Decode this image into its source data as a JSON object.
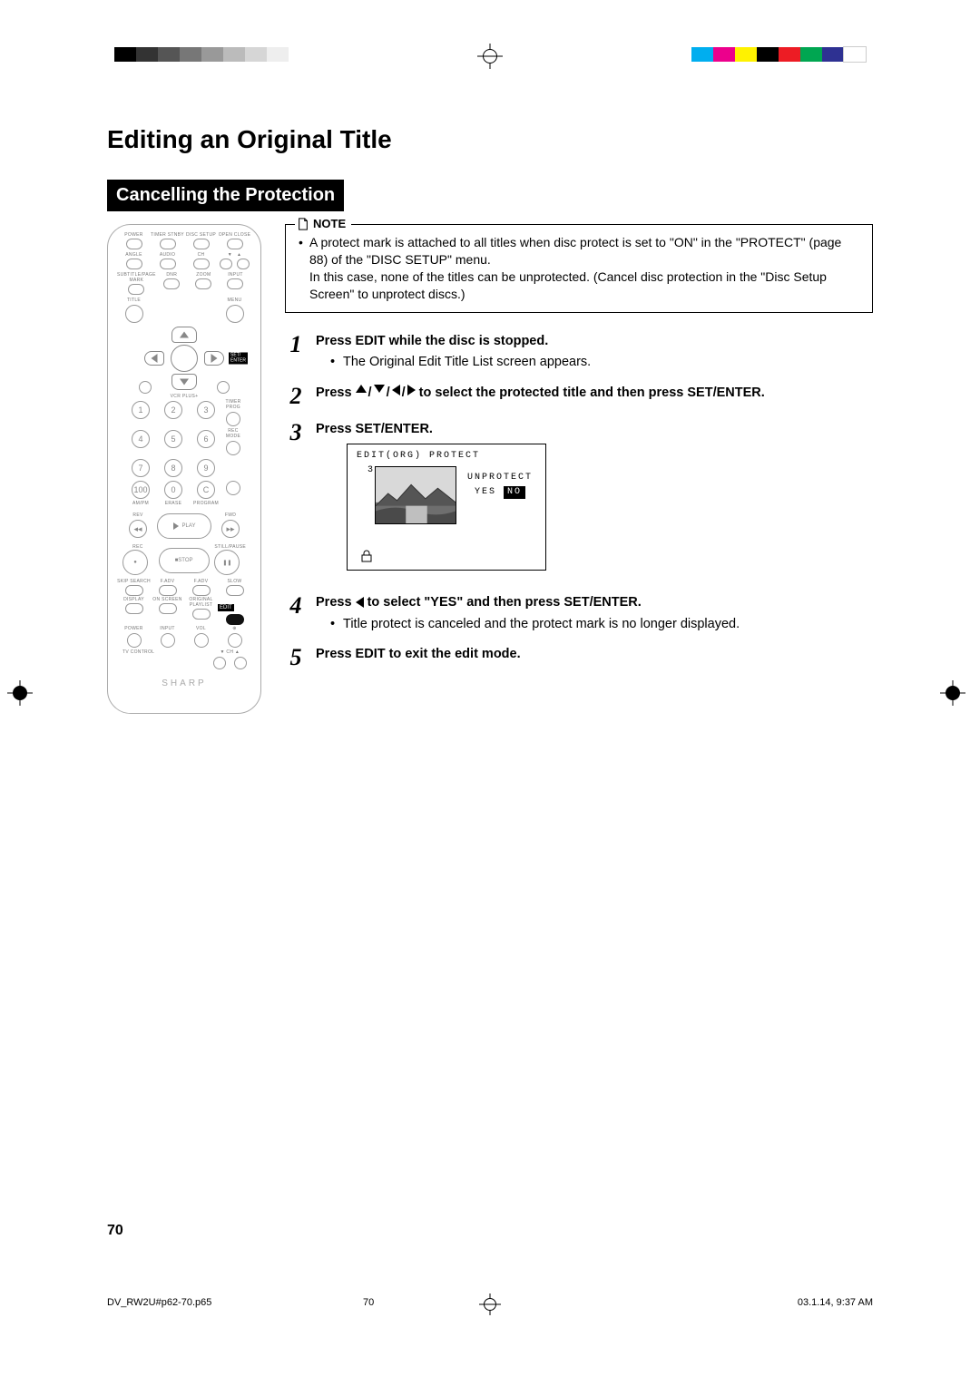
{
  "registration": {
    "left_shades": [
      "#000000",
      "#333333",
      "#555555",
      "#777777",
      "#999999",
      "#bbbbbb",
      "#d6d6d6",
      "#eeeeee"
    ],
    "right_colors": [
      "#00aeef",
      "#ec008c",
      "#fff200",
      "#000000",
      "#ed1c24",
      "#00a651",
      "#2e3192",
      "#ffffff"
    ]
  },
  "page": {
    "title": "Editing an Original Title",
    "section": "Cancelling the Protection",
    "page_number": "70"
  },
  "note": {
    "label": "NOTE",
    "text": "A protect mark is attached to all titles when disc protect is set to \"ON\" in the \"PROTECT\" (page 88) of the \"DISC SETUP\" menu.\nIn this case, none of the titles can be unprotected. (Cancel disc protection in the \"Disc Setup Screen\" to unprotect discs.)"
  },
  "steps": {
    "s1_a": "Press ",
    "s1_b": "EDIT",
    "s1_c": " while the disc is stopped.",
    "s1_sub": "The Original Edit Title List screen appears.",
    "s2_a": "Press ",
    "s2_b": " to select the protected title and then press ",
    "s2_c": "SET/ENTER",
    "s2_d": ".",
    "s3_a": "Press ",
    "s3_b": "SET/ENTER",
    "s3_c": ".",
    "s4_a": "Press ",
    "s4_b": " to select \"YES\" and then press ",
    "s4_c": "SET/ENTER",
    "s4_d": ".",
    "s4_sub": "Title protect is canceled and the protect mark is no longer displayed.",
    "s5_a": "Press ",
    "s5_b": "EDIT",
    "s5_c": " to exit the edit mode."
  },
  "osd": {
    "header": "EDIT(ORG) PROTECT",
    "index": "3",
    "label": "UNPROTECT",
    "yes": "YES",
    "no": "NO"
  },
  "remote": {
    "row1": [
      "POWER",
      "TIMER STNBY",
      "DISC SETUP",
      "OPEN CLOSE"
    ],
    "row2": [
      "ANGLE",
      "AUDIO",
      "CH"
    ],
    "row3": [
      "SUBTITLE/PAGE MARK",
      "DNR",
      "ZOOM",
      "INPUT"
    ],
    "row4": [
      "TITLE",
      "MENU"
    ],
    "dpad_return": "RETURN",
    "dpad_setenter": "SET/\nENTER",
    "vcrplus": "VCR PLUS+",
    "timerprog": "TIMER PROG",
    "recmode": "REC MODE",
    "amtm": "AM/PM",
    "erase": "ERASE",
    "program": "PROGRAM",
    "rev": "REV",
    "fwd": "FWD",
    "play": "PLAY",
    "rec": "REC",
    "stop": "STOP",
    "pause": "STILL/PAUSE",
    "bottom_row1": [
      "SKIP SEARCH",
      "F.ADV",
      "F.ADV",
      "SLOW"
    ],
    "bottom_row2": [
      "DISPLAY",
      "ON SCREEN",
      "ORIGINAL PLAYLIST"
    ],
    "edit": "EDIT",
    "tvrow": [
      "POWER",
      "INPUT",
      "VOL"
    ],
    "tvcontrol": "TV CONTROL",
    "tvch": "CH",
    "brand": "SHARP"
  },
  "footer": {
    "file": "DV_RW2U#p62-70.p65",
    "page": "70",
    "timestamp": "03.1.14, 9:37 AM"
  }
}
